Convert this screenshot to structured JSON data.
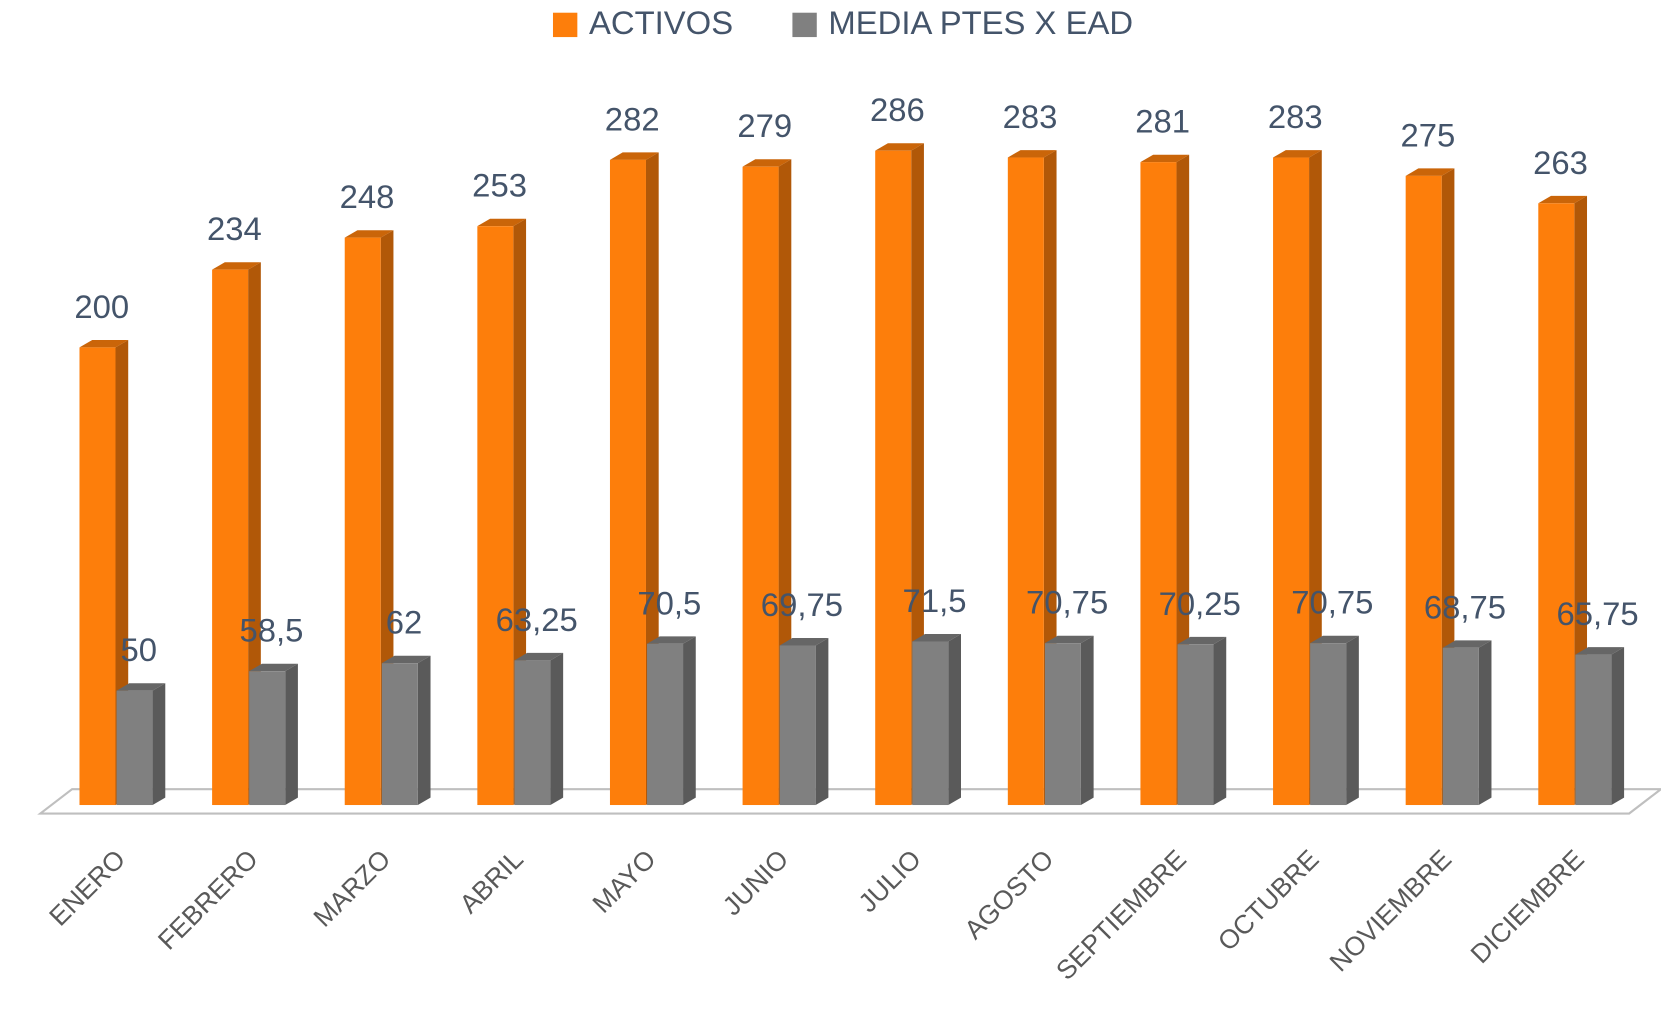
{
  "chart_data": {
    "type": "bar3d",
    "categories": [
      "ENERO",
      "FEBRERO",
      "MARZO",
      "ABRIL",
      "MAYO",
      "JUNIO",
      "JULIO",
      "AGOSTO",
      "SEPTIEMBRE",
      "OCTUBRE",
      "NOVIEMBRE",
      "DICIEMBRE"
    ],
    "series": [
      {
        "name": "ACTIVOS",
        "color": "#fd7e0b",
        "values": [
          200,
          234,
          248,
          253,
          282,
          279,
          286,
          283,
          281,
          283,
          275,
          263
        ]
      },
      {
        "name": "MEDIA PTES X EAD",
        "color": "#808080",
        "values": [
          50,
          58.5,
          62,
          63.25,
          70.5,
          69.75,
          71.5,
          70.75,
          70.25,
          70.75,
          68.75,
          65.75
        ],
        "value_labels": [
          "50",
          "58,5",
          "62",
          "63,25",
          "70,5",
          "69,75",
          "71,5",
          "70,75",
          "70,25",
          "70,75",
          "68,75",
          "65,75"
        ]
      }
    ],
    "legend": "top"
  }
}
